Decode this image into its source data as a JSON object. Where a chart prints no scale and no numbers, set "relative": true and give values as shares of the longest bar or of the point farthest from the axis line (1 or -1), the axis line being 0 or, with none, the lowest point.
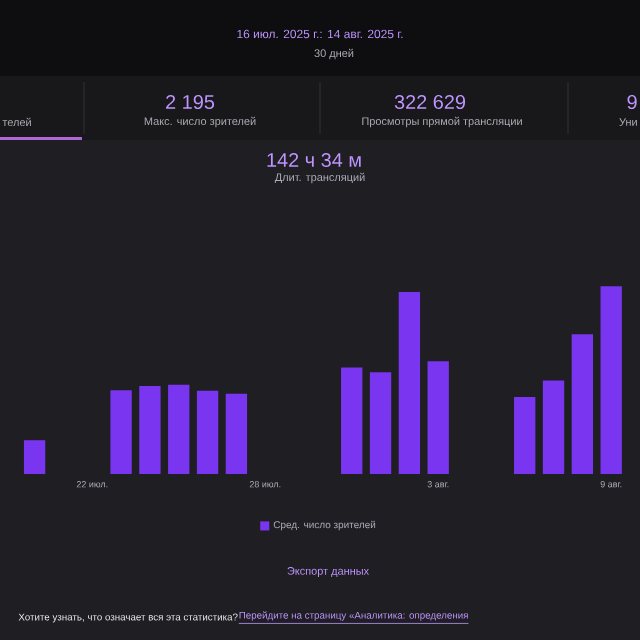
{
  "chart_data": {
    "type": "bar",
    "title": "16 июл. 2025 г.: 14 авг. 2025 г.",
    "subtitle": "30 дней",
    "categories": [
      null,
      null,
      "22 июл.",
      null,
      null,
      null,
      null,
      null,
      "28 июл.",
      null,
      null,
      null,
      null,
      null,
      "3 авг.",
      null,
      null,
      null,
      null,
      null,
      "9 авг."
    ],
    "series": [
      {
        "name": "Сред. число зрителей",
        "color": "#7a35f0",
        "values": [
          0.18,
          null,
          null,
          0.446,
          0.469,
          0.476,
          0.443,
          0.428,
          null,
          null,
          null,
          0.568,
          0.542,
          0.97,
          0.601,
          null,
          null,
          0.41,
          0.498,
          0.745,
          1
        ]
      }
    ],
    "relative": true,
    "legend": "bottom",
    "annotations": [
      "телей",
      "2 195",
      "Макс. число зрителей",
      "322 629",
      "Просмотры прямой трансляции",
      "9",
      "Уни",
      "142 ч 34 м",
      "Длит. трансляций",
      "Экспорт данных",
      "Хотите узнать, что означает вся эта статистика?",
      "Перейдите на страницу «Аналитика: определения"
    ]
  }
}
